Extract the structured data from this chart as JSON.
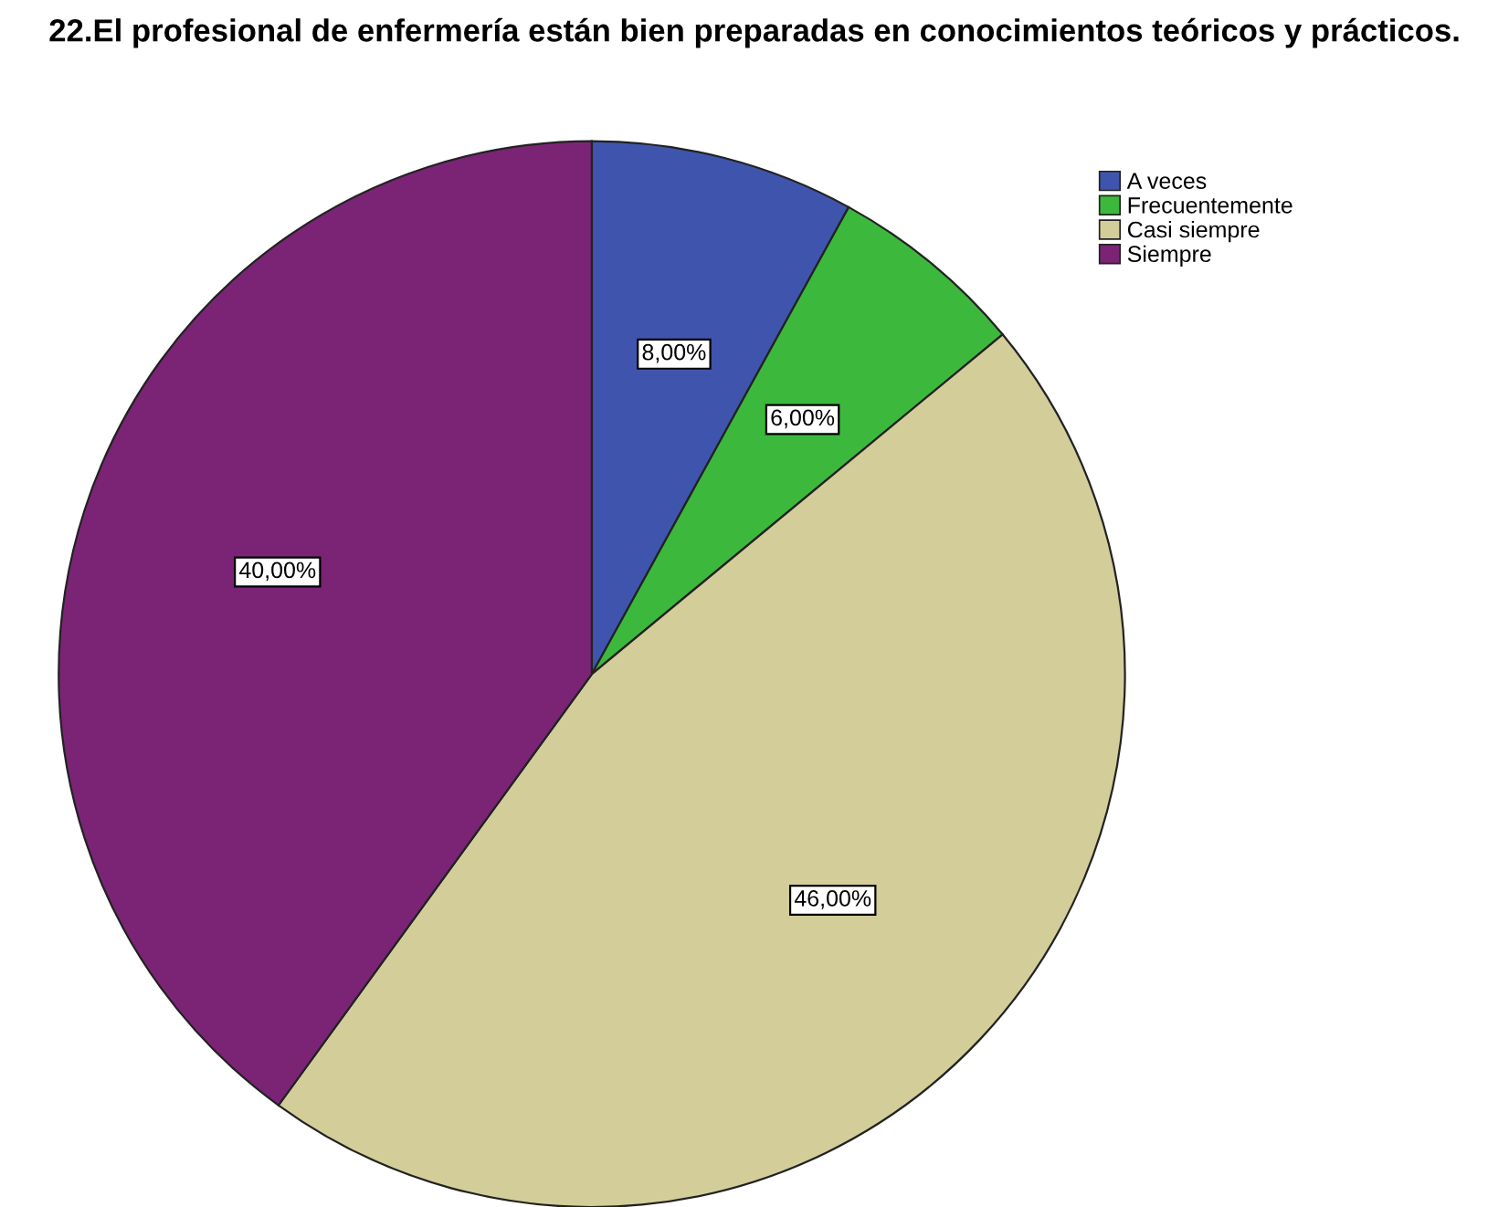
{
  "chart_data": {
    "type": "pie",
    "title": "22.El profesional de enfermería están bien preparadas en conocimientos teóricos y prácticos.",
    "categories": [
      "A veces",
      "Frecuentemente",
      "Casi siempre",
      "Siempre"
    ],
    "values": [
      8,
      6,
      46,
      40
    ],
    "colors": [
      "#3f55ad",
      "#3cb93c",
      "#d3ce99",
      "#7b2476"
    ],
    "value_labels": [
      "8,00%",
      "6,00%",
      "46,00%",
      "40,00%"
    ],
    "legend": "top right"
  }
}
